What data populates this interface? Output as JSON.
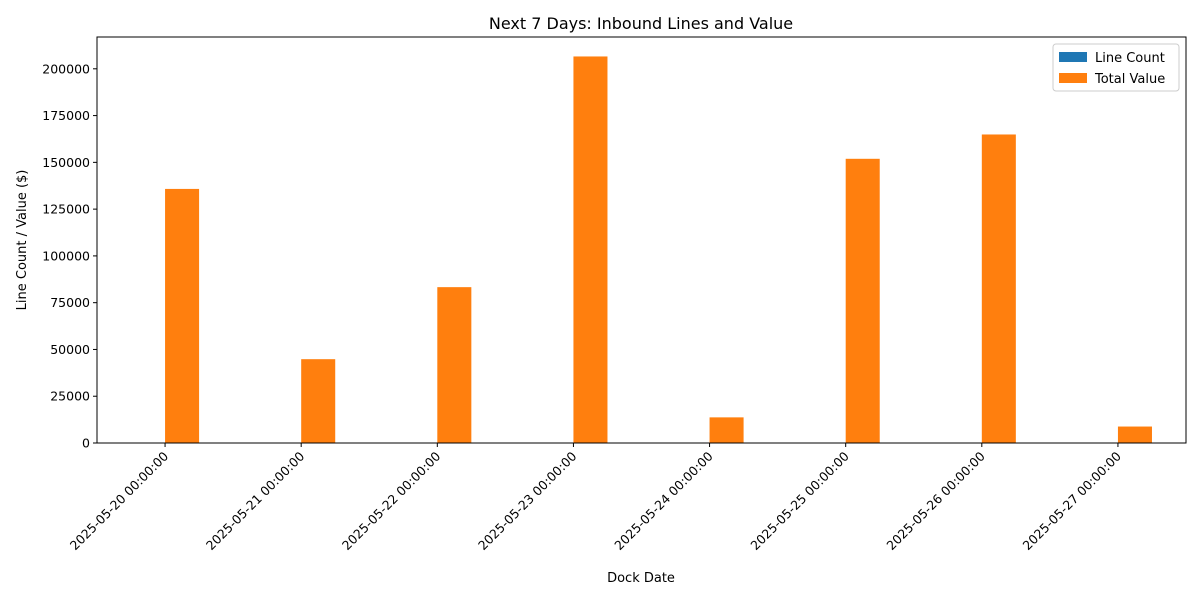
{
  "chart_data": {
    "type": "bar",
    "title": "Next 7 Days: Inbound Lines and Value",
    "xlabel": "Dock Date",
    "ylabel": "Line Count / Value ($)",
    "categories": [
      "2025-05-20 00:00:00",
      "2025-05-21 00:00:00",
      "2025-05-22 00:00:00",
      "2025-05-23 00:00:00",
      "2025-05-24 00:00:00",
      "2025-05-25 00:00:00",
      "2025-05-26 00:00:00",
      "2025-05-27 00:00:00"
    ],
    "series": [
      {
        "name": "Line Count",
        "color": "#1f77b4",
        "values": [
          45,
          20,
          15,
          50,
          10,
          18,
          22,
          8
        ]
      },
      {
        "name": "Total Value",
        "color": "#ff7f0e",
        "values": [
          135800,
          44800,
          83300,
          206600,
          13700,
          151900,
          164900,
          8800
        ]
      }
    ],
    "ylim": [
      0,
      217000
    ],
    "yticks": [
      0,
      25000,
      50000,
      75000,
      100000,
      125000,
      150000,
      175000,
      200000
    ],
    "grid": false,
    "legend_position": "top-right"
  }
}
